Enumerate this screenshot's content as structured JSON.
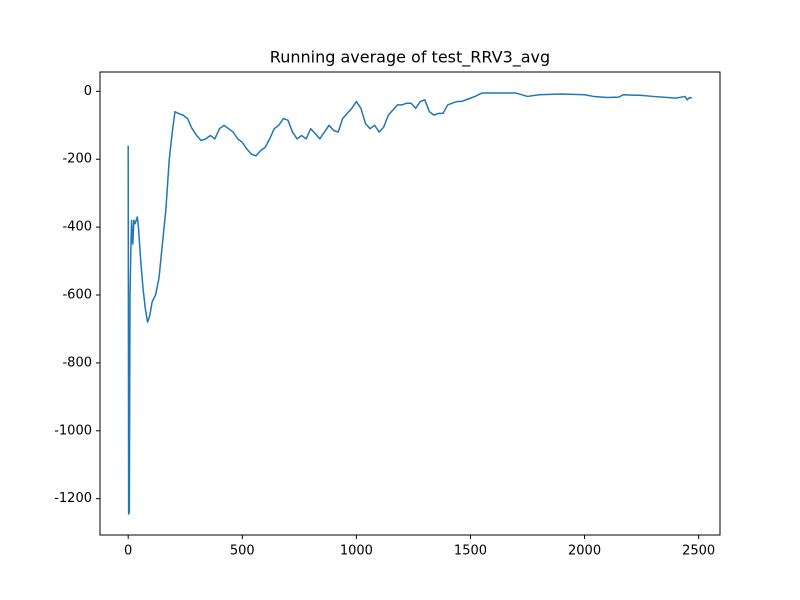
{
  "chart_data": {
    "type": "line",
    "title": "Running average of test_RRV3_avg",
    "x": [
      0,
      2,
      5,
      8,
      12,
      15,
      20,
      25,
      30,
      40,
      45,
      55,
      65,
      75,
      85,
      95,
      105,
      120,
      135,
      150,
      165,
      180,
      195,
      205,
      220,
      240,
      260,
      280,
      300,
      320,
      340,
      360,
      380,
      400,
      420,
      440,
      460,
      480,
      500,
      520,
      540,
      560,
      580,
      600,
      620,
      640,
      660,
      680,
      700,
      720,
      740,
      760,
      780,
      800,
      820,
      840,
      860,
      880,
      900,
      920,
      940,
      960,
      980,
      1000,
      1020,
      1040,
      1060,
      1080,
      1100,
      1120,
      1140,
      1160,
      1180,
      1200,
      1220,
      1240,
      1260,
      1280,
      1300,
      1320,
      1340,
      1360,
      1380,
      1400,
      1420,
      1440,
      1460,
      1500,
      1520,
      1550,
      1600,
      1700,
      1750,
      1800,
      1900,
      2000,
      2040,
      2100,
      2150,
      2170,
      2250,
      2300,
      2400,
      2440,
      2450,
      2460,
      2470
    ],
    "values": [
      -160,
      -1245,
      -1240,
      -600,
      -460,
      -380,
      -450,
      -380,
      -390,
      -370,
      -400,
      -500,
      -580,
      -640,
      -680,
      -660,
      -620,
      -600,
      -550,
      -450,
      -350,
      -200,
      -110,
      -60,
      -65,
      -70,
      -80,
      -110,
      -130,
      -145,
      -140,
      -130,
      -140,
      -110,
      -100,
      -110,
      -120,
      -140,
      -150,
      -170,
      -185,
      -190,
      -175,
      -165,
      -140,
      -110,
      -100,
      -80,
      -85,
      -120,
      -140,
      -130,
      -140,
      -110,
      -125,
      -140,
      -120,
      -100,
      -115,
      -120,
      -80,
      -65,
      -50,
      -30,
      -50,
      -95,
      -110,
      -100,
      -120,
      -105,
      -70,
      -55,
      -40,
      -40,
      -35,
      -35,
      -50,
      -30,
      -25,
      -60,
      -70,
      -65,
      -65,
      -40,
      -35,
      -30,
      -30,
      -20,
      -15,
      -5,
      -5,
      -5,
      -15,
      -10,
      -8,
      -10,
      -15,
      -18,
      -17,
      -10,
      -12,
      -15,
      -20,
      -15,
      -25,
      -18,
      -20
    ],
    "color": "#1f77b4",
    "xlim": [
      -123.5,
      2593.5
    ],
    "xticks": [
      0,
      500,
      1000,
      1500,
      2000,
      2500
    ],
    "ylim": [
      -1307,
      57
    ],
    "yticks": [
      -1200,
      -1000,
      -800,
      -600,
      -400,
      -200,
      0
    ],
    "grid": false
  }
}
